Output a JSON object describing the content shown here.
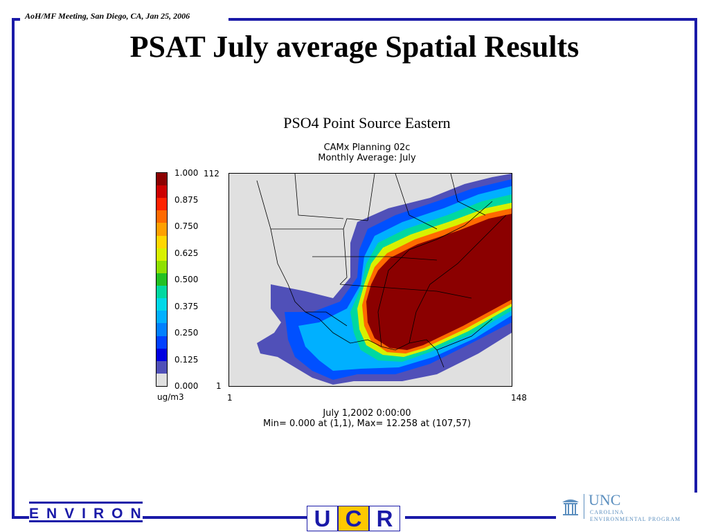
{
  "header": {
    "meeting": "AoH/MF Meeting, San Diego, CA,  Jan 25, 2006"
  },
  "slide": {
    "title": "PSAT July average Spatial Results"
  },
  "plot": {
    "title": "PSO4 Point Source Eastern",
    "subtitle1": "CAMx Planning 02c",
    "subtitle2": "Monthly Average: July",
    "y_top": "112",
    "y_bottom": "1",
    "x_left": "1",
    "x_right": "148",
    "date": "July 1,2002 0:00:00",
    "minmax": "Min=  0.000 at (1,1), Max= 12.258 at (107,57)",
    "units": "ug/m3",
    "colorbar_labels": [
      "1.000",
      "0.875",
      "0.750",
      "0.625",
      "0.500",
      "0.375",
      "0.250",
      "0.125",
      "0.000"
    ],
    "colorbar_colors": [
      "#8b0000",
      "#cc0000",
      "#ff2200",
      "#ff6a00",
      "#ffa000",
      "#ffd700",
      "#d8f000",
      "#8ee000",
      "#22c022",
      "#00d8a0",
      "#00d8e8",
      "#00b0ff",
      "#0080ff",
      "#0040ff",
      "#0000e0",
      "#5050b8",
      "#e0e0e0"
    ]
  },
  "footer": {
    "environ": "ENVIRON",
    "ucr": [
      "U",
      "C",
      "R"
    ],
    "unc_name": "UNC",
    "unc_sub1": "CAROLINA",
    "unc_sub2": "ENVIRONMENTAL PROGRAM"
  }
}
